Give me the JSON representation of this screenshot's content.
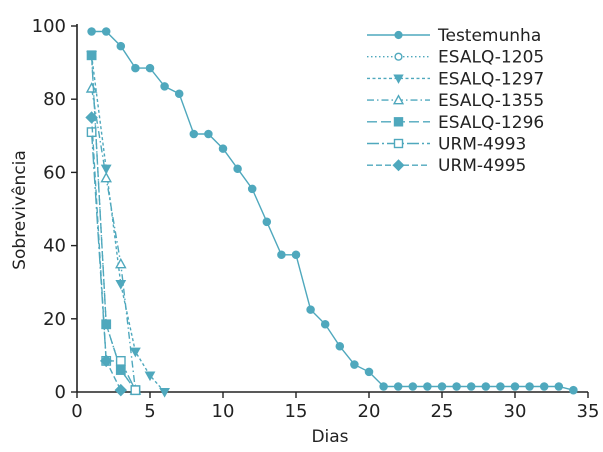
{
  "chart_data": {
    "type": "line",
    "title": "",
    "xlabel": "Dias",
    "ylabel": "Sobrevivência",
    "xlim": [
      0,
      35
    ],
    "ylim": [
      0,
      100
    ],
    "x_ticks": [
      "0",
      "5",
      "10",
      "15",
      "20",
      "25",
      "30",
      "35"
    ],
    "y_ticks": [
      "0",
      "20",
      "40",
      "60",
      "80",
      "100"
    ],
    "grid": false,
    "legend_position": "top-right",
    "color": "#4fa8bd",
    "series": [
      {
        "name": "Testemunha",
        "line_style": "solid",
        "marker": "filled-circle",
        "points": [
          [
            1,
            98.5
          ],
          [
            2,
            98.5
          ],
          [
            3,
            94.5
          ],
          [
            4,
            88.5
          ],
          [
            5,
            88.5
          ],
          [
            6,
            83.5
          ],
          [
            7,
            81.5
          ],
          [
            8,
            70.5
          ],
          [
            9,
            70.5
          ],
          [
            10,
            66.5
          ],
          [
            11,
            61.0
          ],
          [
            12,
            55.5
          ],
          [
            13,
            46.5
          ],
          [
            14,
            37.5
          ],
          [
            15,
            37.5
          ],
          [
            16,
            22.5
          ],
          [
            17,
            18.5
          ],
          [
            18,
            12.5
          ],
          [
            19,
            7.5
          ],
          [
            20,
            5.5
          ],
          [
            21,
            1.5
          ],
          [
            22,
            1.5
          ],
          [
            23,
            1.5
          ],
          [
            24,
            1.5
          ],
          [
            25,
            1.5
          ],
          [
            26,
            1.5
          ],
          [
            27,
            1.5
          ],
          [
            28,
            1.5
          ],
          [
            29,
            1.5
          ],
          [
            30,
            1.5
          ],
          [
            31,
            1.5
          ],
          [
            32,
            1.5
          ],
          [
            33,
            1.5
          ],
          [
            34,
            0.5
          ]
        ]
      },
      {
        "name": "ESALQ-1205",
        "line_style": "dotted",
        "marker": "open-circle",
        "points": [
          [
            1,
            92
          ],
          [
            2,
            18.5
          ],
          [
            3,
            6
          ],
          [
            4,
            0.5
          ]
        ]
      },
      {
        "name": "ESALQ-1297",
        "line_style": "short-dash",
        "marker": "filled-triangle-down",
        "points": [
          [
            1,
            92
          ],
          [
            2,
            61
          ],
          [
            3,
            29.5
          ],
          [
            4,
            11
          ],
          [
            5,
            4.5
          ],
          [
            6,
            0
          ]
        ]
      },
      {
        "name": "ESALQ-1355",
        "line_style": "dash-dot",
        "marker": "open-triangle-up",
        "points": [
          [
            1,
            83
          ],
          [
            2,
            58.5
          ],
          [
            3,
            35
          ],
          [
            4,
            0.5
          ]
        ]
      },
      {
        "name": "ESALQ-1296",
        "line_style": "long-dash",
        "marker": "filled-square",
        "points": [
          [
            1,
            92
          ],
          [
            2,
            18.5
          ],
          [
            3,
            6
          ],
          [
            4,
            0.5
          ]
        ]
      },
      {
        "name": "URM-4993",
        "line_style": "dash-dot-long",
        "marker": "open-square",
        "points": [
          [
            1,
            71
          ],
          [
            2,
            8.5
          ],
          [
            3,
            8.5
          ],
          [
            4,
            0.5
          ]
        ]
      },
      {
        "name": "URM-4995",
        "line_style": "dash",
        "marker": "filled-diamond",
        "points": [
          [
            1,
            75
          ],
          [
            2,
            8.5
          ],
          [
            3,
            0.5
          ]
        ]
      }
    ]
  }
}
